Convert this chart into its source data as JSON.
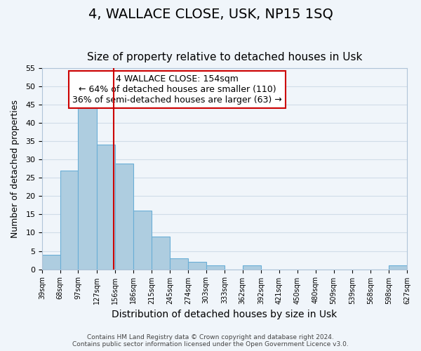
{
  "title": "4, WALLACE CLOSE, USK, NP15 1SQ",
  "subtitle": "Size of property relative to detached houses in Usk",
  "xlabel": "Distribution of detached houses by size in Usk",
  "ylabel": "Number of detached properties",
  "bar_edges": [
    39,
    68,
    97,
    127,
    156,
    186,
    215,
    245,
    274,
    303,
    333,
    362,
    392,
    421,
    450,
    480,
    509,
    539,
    568,
    598,
    627
  ],
  "bar_heights": [
    4,
    27,
    46,
    34,
    29,
    16,
    9,
    3,
    2,
    1,
    0,
    1,
    0,
    0,
    0,
    0,
    0,
    0,
    0,
    1
  ],
  "bar_color": "#aecde0",
  "bar_edge_color": "#6aaed6",
  "vline_x": 154,
  "vline_color": "#cc0000",
  "annotation_box_text": "4 WALLACE CLOSE: 154sqm\n← 64% of detached houses are smaller (110)\n36% of semi-detached houses are larger (63) →",
  "ylim": [
    0,
    55
  ],
  "yticks": [
    0,
    5,
    10,
    15,
    20,
    25,
    30,
    35,
    40,
    45,
    50,
    55
  ],
  "tick_labels": [
    "39sqm",
    "68sqm",
    "97sqm",
    "127sqm",
    "156sqm",
    "186sqm",
    "215sqm",
    "245sqm",
    "274sqm",
    "303sqm",
    "333sqm",
    "362sqm",
    "392sqm",
    "421sqm",
    "450sqm",
    "480sqm",
    "509sqm",
    "539sqm",
    "568sqm",
    "598sqm",
    "627sqm"
  ],
  "grid_color": "#d0dde8",
  "background_color": "#f0f5fa",
  "footer_text": "Contains HM Land Registry data © Crown copyright and database right 2024.\nContains public sector information licensed under the Open Government Licence v3.0.",
  "title_fontsize": 14,
  "subtitle_fontsize": 11,
  "xlabel_fontsize": 10,
  "ylabel_fontsize": 9,
  "annotation_fontsize": 9
}
